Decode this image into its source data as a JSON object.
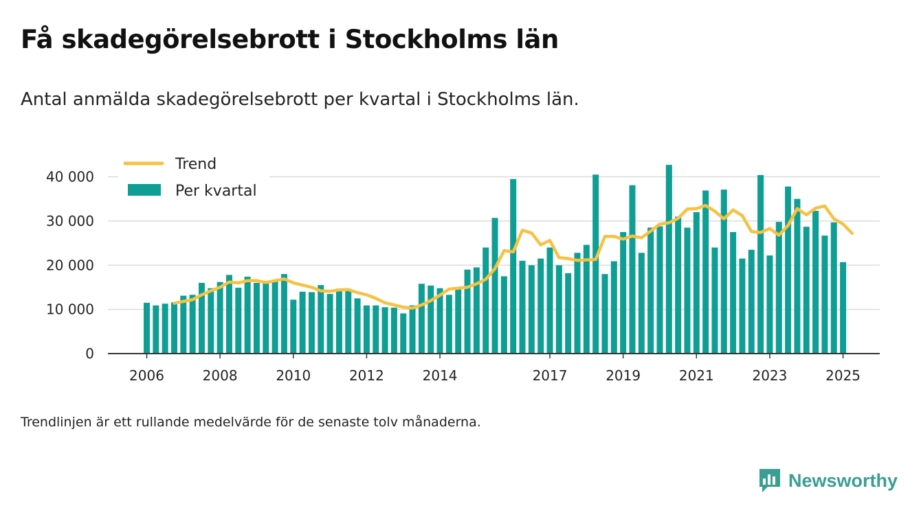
{
  "title": "Få skadegörelsebrott i Stockholms län",
  "subtitle": "Antal anmälda skadegörelsebrott per kvartal i Stockholms län.",
  "footnote": "Trendlinjen är ett rullande medelvärde för de senaste tolv månaderna.",
  "brand": {
    "name": "Newsworthy",
    "icon": "newsworthy-logo-icon"
  },
  "colors": {
    "bars": "#0f9e94",
    "trend": "#f6c244",
    "grid": "#dcdcdc",
    "axis": "#333333",
    "brand": "#3a9e93"
  },
  "chart_data": {
    "type": "bar",
    "title": "",
    "xlabel": "",
    "ylabel": "",
    "ylim": [
      0,
      45000
    ],
    "yticks": [
      0,
      10000,
      20000,
      30000,
      40000
    ],
    "ytick_labels": [
      "0",
      "10 000",
      "20 000",
      "30 000",
      "40 000"
    ],
    "xticks": [
      {
        "label": "2006",
        "index": 0
      },
      {
        "label": "2008",
        "index": 8
      },
      {
        "label": "2010",
        "index": 16
      },
      {
        "label": "2012",
        "index": 24
      },
      {
        "label": "2014",
        "index": 32
      },
      {
        "label": "2017",
        "index": 44
      },
      {
        "label": "2019",
        "index": 52
      },
      {
        "label": "2021",
        "index": 60
      },
      {
        "label": "2023",
        "index": 68
      },
      {
        "label": "2025",
        "index": 76
      }
    ],
    "grid": true,
    "legend": "top-left",
    "series": [
      {
        "name": "Per kvartal",
        "type": "bar",
        "values": [
          11500,
          10900,
          11300,
          11600,
          13100,
          13300,
          16000,
          14800,
          16200,
          17800,
          14900,
          17400,
          16000,
          15900,
          16600,
          18000,
          12200,
          14000,
          13900,
          15500,
          13500,
          14700,
          14600,
          12500,
          10900,
          10900,
          10500,
          10400,
          9100,
          10900,
          15800,
          15400,
          14800,
          13300,
          14800,
          19000,
          19500,
          24000,
          30700,
          17500,
          39500,
          21000,
          20000,
          21500,
          24000,
          20000,
          18200,
          22800,
          24600,
          40500,
          18000,
          20900,
          27500,
          38100,
          22800,
          28500,
          28800,
          42700,
          31000,
          28500,
          32000,
          36900,
          24000,
          37100,
          27500,
          21500,
          23500,
          40400,
          22200,
          29800,
          37800,
          35000,
          28700,
          32300,
          26700,
          29700,
          20700
        ]
      },
      {
        "name": "Trend",
        "type": "line",
        "start_index": 3,
        "values": [
          11400,
          11800,
          12200,
          13300,
          14200,
          15000,
          16200,
          16000,
          16500,
          16500,
          16100,
          16500,
          16900,
          16000,
          15500,
          15000,
          14200,
          14100,
          14400,
          14500,
          13800,
          13300,
          12500,
          11500,
          11000,
          10500,
          10300,
          11000,
          12000,
          13200,
          14600,
          14800,
          15000,
          15800,
          16800,
          19200,
          23300,
          23000,
          27900,
          27300,
          24600,
          25600,
          21700,
          21500,
          21100,
          21200,
          21300,
          26500,
          26500,
          25900,
          26600,
          26200,
          27700,
          29300,
          29600,
          30600,
          32700,
          32800,
          33500,
          32200,
          30500,
          32500,
          31200,
          27600,
          27400,
          28300,
          26800,
          29000,
          32800,
          31400,
          32900,
          33400,
          30500,
          29300,
          27200
        ]
      }
    ]
  }
}
